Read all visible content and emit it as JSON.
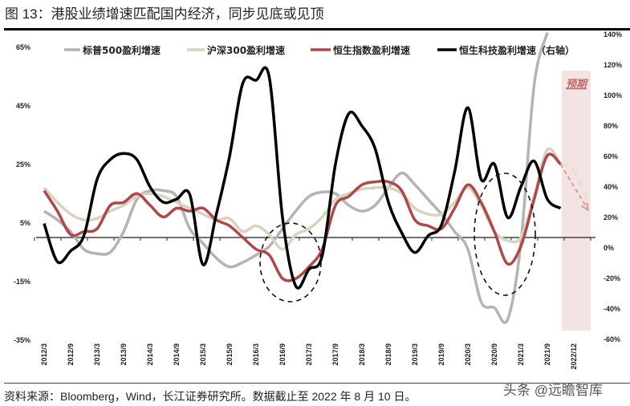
{
  "title": "图 13：港股业绩增速匹配国内经济，同步见底或见顶",
  "source": "资料来源：Bloomberg，Wind，长江证券研究所。数据截止至 2022 年 8 月 10 日。",
  "watermark": "头条 @远瞻智库",
  "chart_data": {
    "type": "line",
    "title": "图 13：港股业绩增速匹配国内经济，同步见底或见顶",
    "x_tick_labels": [
      "2012/3",
      "2012/9",
      "2013/3",
      "2013/9",
      "2014/3",
      "2014/9",
      "2015/3",
      "2015/9",
      "2016/3",
      "2016/9",
      "2017/3",
      "2017/9",
      "2018/3",
      "2018/9",
      "2019/3",
      "2019/9",
      "2020/3",
      "2020/9",
      "2021/3",
      "2021/9",
      "2022/12"
    ],
    "y_left": {
      "ticks": [
        "65%",
        "45%",
        "25%",
        "5%",
        "-15%",
        "-35%"
      ],
      "tick_values": [
        65,
        45,
        25,
        5,
        -15,
        -35
      ],
      "range": [
        -35,
        70
      ]
    },
    "y_right": {
      "ticks": [
        "140%",
        "120%",
        "100%",
        "80%",
        "60%",
        "40%",
        "20%",
        "0%",
        "-20%",
        "-40%",
        "-60%"
      ],
      "tick_values": [
        140,
        120,
        100,
        80,
        60,
        40,
        20,
        0,
        -20,
        -40,
        -60
      ],
      "range": [
        -60,
        140
      ]
    },
    "x_frequency": "quarterly, starting 2012/3",
    "legend_position": "top",
    "forecast_label": "预期",
    "series": [
      {
        "name": "标普500盈利增速",
        "axis": "left",
        "color": "#b4b4b4",
        "values": [
          9,
          6,
          2,
          -4,
          -5.5,
          -5,
          2,
          13,
          16,
          16,
          14,
          3,
          -2,
          -7,
          -10,
          -8.5,
          -6,
          -3,
          3,
          9,
          14,
          15.5,
          15,
          11,
          9,
          11,
          17,
          22,
          18,
          13,
          8,
          2,
          -4,
          -22,
          -24,
          -28,
          -2,
          52,
          70
        ]
      },
      {
        "name": "沪深300盈利增速",
        "axis": "left",
        "color": "#d8d3bf",
        "values": [
          17,
          12,
          8,
          6,
          6.5,
          9,
          11,
          14,
          15,
          14,
          12,
          10,
          8,
          6,
          6.5,
          2,
          4,
          1,
          -4,
          1,
          3,
          7,
          13,
          15,
          16.5,
          17,
          17,
          15,
          10,
          8,
          8,
          12,
          17,
          11,
          2,
          -1,
          0,
          14,
          30,
          25
        ],
        "forecast": [
          25,
          23,
          13
        ]
      },
      {
        "name": "恒生指数盈利增速",
        "axis": "left",
        "color": "#b04848",
        "values": [
          16,
          9,
          1,
          2,
          3,
          11,
          12,
          15,
          11,
          7,
          10,
          9,
          10,
          6,
          4,
          0,
          -4,
          -6,
          -14,
          -14,
          -10,
          -4,
          11,
          14,
          18,
          19,
          19,
          16,
          6,
          4,
          3,
          10,
          18,
          12,
          2,
          -9,
          -3,
          13,
          28,
          25
        ],
        "forecast": [
          25,
          10
        ]
      },
      {
        "name": "恒生科技盈利增速（右轴）",
        "axis": "right",
        "color": "#000000",
        "values": [
          16,
          -9,
          -2,
          8,
          45,
          58,
          62,
          58,
          40,
          30,
          32,
          35,
          -11,
          22,
          60,
          108,
          110,
          112,
          20,
          -25,
          -14,
          -5,
          55,
          88,
          80,
          65,
          30,
          10,
          -3,
          8,
          15,
          50,
          92,
          45,
          55,
          20,
          40,
          57,
          32,
          26
        ]
      }
    ]
  }
}
